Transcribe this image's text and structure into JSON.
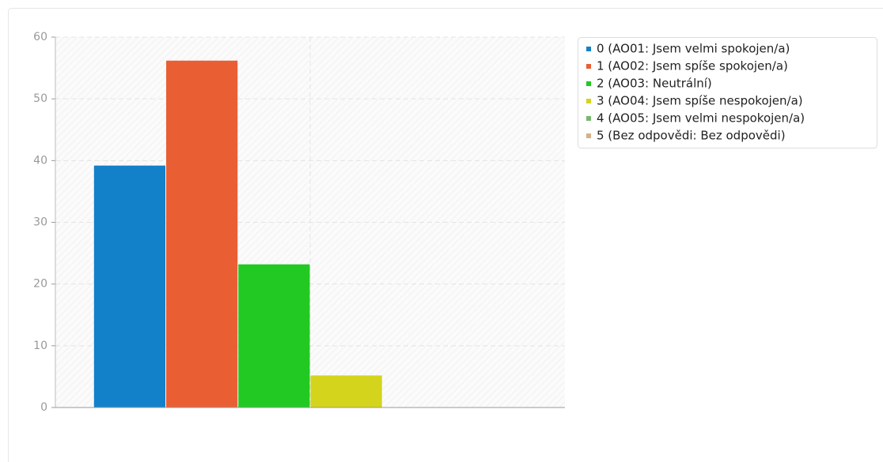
{
  "chart_data": {
    "type": "bar",
    "categories": [
      null
    ],
    "series": [
      {
        "name": "0 (AO01: Jsem velmi spokojen/a)",
        "color": "#1381c9",
        "values": [
          39
        ]
      },
      {
        "name": "1 (AO02: Jsem spíše spokojen/a)",
        "color": "#e95f33",
        "values": [
          56
        ]
      },
      {
        "name": "2 (AO03: Neutrální)",
        "color": "#22c922",
        "values": [
          23
        ]
      },
      {
        "name": "3 (AO04: Jsem spíše nespokojen/a)",
        "color": "#d4d41c",
        "values": [
          5
        ]
      },
      {
        "name": "4 (AO05: Jsem velmi nespokojen/a)",
        "color": "#76b96c",
        "values": [
          0
        ]
      },
      {
        "name": "5 (Bez odpovědi: Bez odpovědi)",
        "color": "#d5b08a",
        "values": [
          0
        ]
      }
    ],
    "ylim": [
      0,
      60
    ],
    "yticks": [
      0,
      10,
      20,
      30,
      40,
      50,
      60
    ],
    "grid": true,
    "legend": "right"
  }
}
